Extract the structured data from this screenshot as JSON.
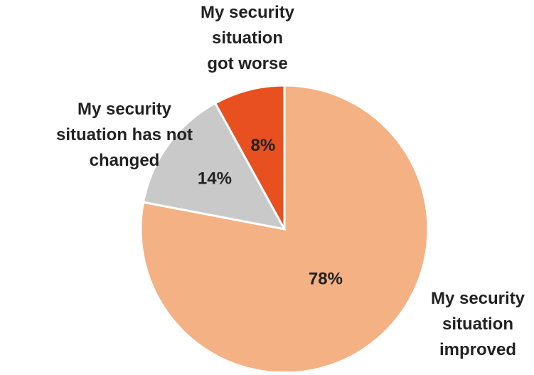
{
  "chart_data": {
    "type": "pie",
    "title": "",
    "slices": [
      {
        "label": "My security situation improved",
        "label_lines": [
          "My security",
          "situation",
          "improved"
        ],
        "value": 78,
        "display": "78%",
        "color": "#F4B183"
      },
      {
        "label": "My security situation has not changed",
        "label_lines": [
          "My security",
          "situation has not",
          "changed"
        ],
        "value": 14,
        "display": "14%",
        "color": "#C9C9C9"
      },
      {
        "label": "My security situation got worse",
        "label_lines": [
          "My security",
          "situation",
          "got worse"
        ],
        "value": 8,
        "display": "8%",
        "color": "#E8501F"
      }
    ],
    "start_angle": "12 o'clock",
    "direction": "clockwise",
    "slice_border_color": "#FFFFFF",
    "legend": "none",
    "label_placement": "outside"
  }
}
